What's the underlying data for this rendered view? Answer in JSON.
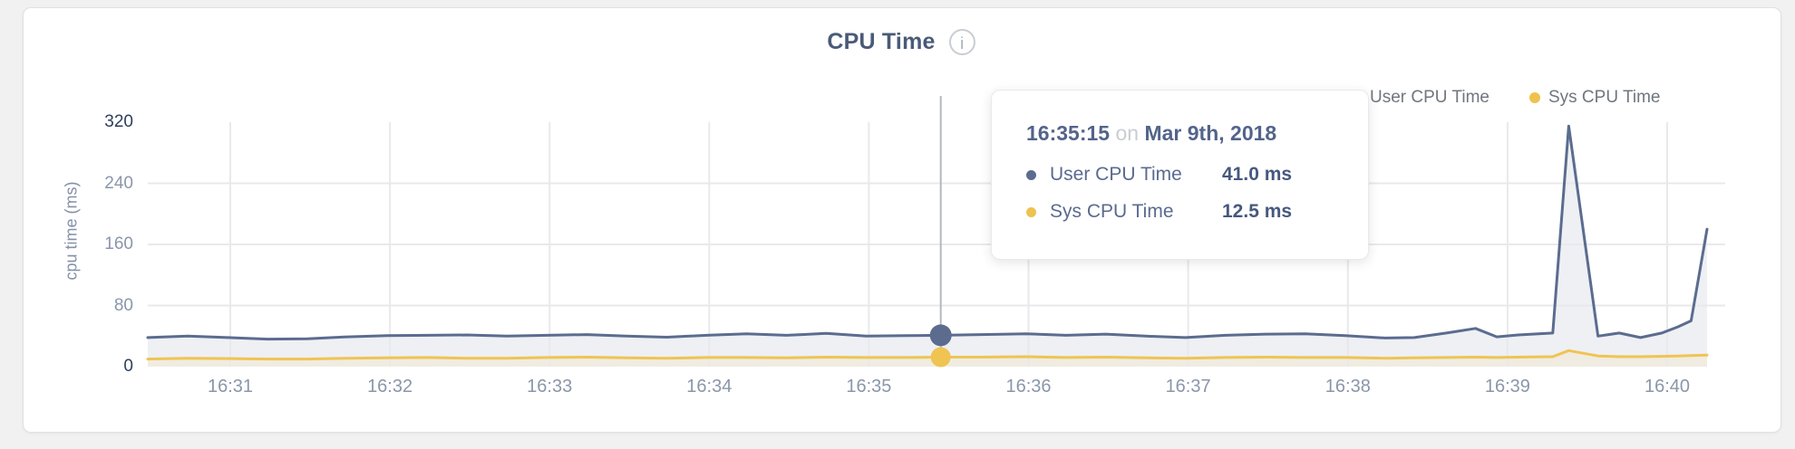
{
  "header": {
    "title": "CPU Time",
    "info_icon_glyph": "i"
  },
  "legend": {
    "items": [
      {
        "label": "User CPU Time",
        "color": "#5b6c8f"
      },
      {
        "label": "Sys CPU Time",
        "color": "#eec24e"
      }
    ]
  },
  "tooltip": {
    "time": "16:35:15",
    "on_word": "on",
    "date": "Mar 9th, 2018",
    "rows": [
      {
        "label": "User CPU Time",
        "value": "41.0 ms",
        "color": "#5b6c8f"
      },
      {
        "label": "Sys CPU Time",
        "value": "12.5 ms",
        "color": "#eec24e"
      }
    ]
  },
  "colors": {
    "page_background": "#f1f1f2",
    "card_background": "#ffffff",
    "gridline": "#e9e9ec",
    "crosshair": "#b4b8bf",
    "axis_text": "#8a96aa",
    "axis_text_strong": "#2d3e5f",
    "title_text": "#4a5a78"
  },
  "chart_data": {
    "type": "area",
    "title": "CPU Time",
    "xlabel": "",
    "ylabel": "cpu time (ms)",
    "ylim": [
      0,
      320
    ],
    "y_ticks": [
      0,
      80,
      160,
      240,
      320
    ],
    "y_ticks_strong": [
      0,
      320
    ],
    "y_gridlines": [
      80,
      160,
      240
    ],
    "grid": "on",
    "legend_position": "top-right",
    "x_domain_seconds": [
      0,
      586
    ],
    "x_ticks": [
      {
        "t": 31,
        "label": "16:31"
      },
      {
        "t": 91,
        "label": "16:32"
      },
      {
        "t": 151,
        "label": "16:33"
      },
      {
        "t": 211,
        "label": "16:34"
      },
      {
        "t": 271,
        "label": "16:35"
      },
      {
        "t": 331,
        "label": "16:36"
      },
      {
        "t": 391,
        "label": "16:37"
      },
      {
        "t": 451,
        "label": "16:38"
      },
      {
        "t": 511,
        "label": "16:39"
      },
      {
        "t": 571,
        "label": "16:40"
      }
    ],
    "series": [
      {
        "name": "User CPU Time",
        "color": "#5b6c8f",
        "fill": "#eef0f4",
        "unit": "ms",
        "points": [
          [
            0,
            38
          ],
          [
            15,
            40
          ],
          [
            30,
            38
          ],
          [
            45,
            36
          ],
          [
            60,
            36.5
          ],
          [
            75,
            39
          ],
          [
            90,
            40.5
          ],
          [
            105,
            41
          ],
          [
            120,
            41.5
          ],
          [
            135,
            40
          ],
          [
            150,
            41
          ],
          [
            165,
            42
          ],
          [
            180,
            40
          ],
          [
            195,
            38.5
          ],
          [
            210,
            41
          ],
          [
            225,
            43
          ],
          [
            240,
            41
          ],
          [
            255,
            43.5
          ],
          [
            270,
            40
          ],
          [
            285,
            40.5
          ],
          [
            298,
            41
          ],
          [
            313,
            42
          ],
          [
            330,
            43
          ],
          [
            345,
            41
          ],
          [
            360,
            42.5
          ],
          [
            375,
            40
          ],
          [
            390,
            38
          ],
          [
            405,
            41
          ],
          [
            420,
            42.5
          ],
          [
            435,
            43
          ],
          [
            450,
            40.5
          ],
          [
            465,
            37.5
          ],
          [
            476,
            38
          ],
          [
            488,
            44
          ],
          [
            499,
            50
          ],
          [
            507,
            39
          ],
          [
            515,
            41.5
          ],
          [
            528,
            44
          ],
          [
            534,
            315
          ],
          [
            545,
            40
          ],
          [
            553,
            44
          ],
          [
            561,
            38
          ],
          [
            569,
            44
          ],
          [
            575,
            52
          ],
          [
            580,
            60
          ],
          [
            586,
            180
          ]
        ]
      },
      {
        "name": "Sys CPU Time",
        "color": "#f0c452",
        "fill": "#f0ece1",
        "unit": "ms",
        "points": [
          [
            0,
            10
          ],
          [
            15,
            11
          ],
          [
            30,
            10.5
          ],
          [
            45,
            10
          ],
          [
            60,
            10
          ],
          [
            75,
            11
          ],
          [
            90,
            11.5
          ],
          [
            105,
            12
          ],
          [
            120,
            11
          ],
          [
            135,
            11
          ],
          [
            150,
            12
          ],
          [
            165,
            12.5
          ],
          [
            180,
            11.5
          ],
          [
            195,
            11
          ],
          [
            210,
            12
          ],
          [
            225,
            12
          ],
          [
            240,
            11.5
          ],
          [
            255,
            12.5
          ],
          [
            270,
            12
          ],
          [
            285,
            12
          ],
          [
            298,
            12.5
          ],
          [
            313,
            12.5
          ],
          [
            330,
            13
          ],
          [
            345,
            12
          ],
          [
            360,
            12.5
          ],
          [
            375,
            11.5
          ],
          [
            390,
            11
          ],
          [
            405,
            12
          ],
          [
            420,
            12.5
          ],
          [
            435,
            12
          ],
          [
            450,
            12
          ],
          [
            465,
            11
          ],
          [
            476,
            11.5
          ],
          [
            488,
            12
          ],
          [
            499,
            12.5
          ],
          [
            507,
            12
          ],
          [
            515,
            12.5
          ],
          [
            528,
            13
          ],
          [
            534,
            21
          ],
          [
            545,
            14
          ],
          [
            553,
            13
          ],
          [
            561,
            13
          ],
          [
            569,
            13.5
          ],
          [
            575,
            14
          ],
          [
            580,
            14.5
          ],
          [
            586,
            15
          ]
        ]
      }
    ],
    "hover": {
      "t": 298,
      "time": "16:35:15",
      "date": "Mar 9th, 2018",
      "values_ms": [
        41.0,
        12.5
      ]
    }
  }
}
